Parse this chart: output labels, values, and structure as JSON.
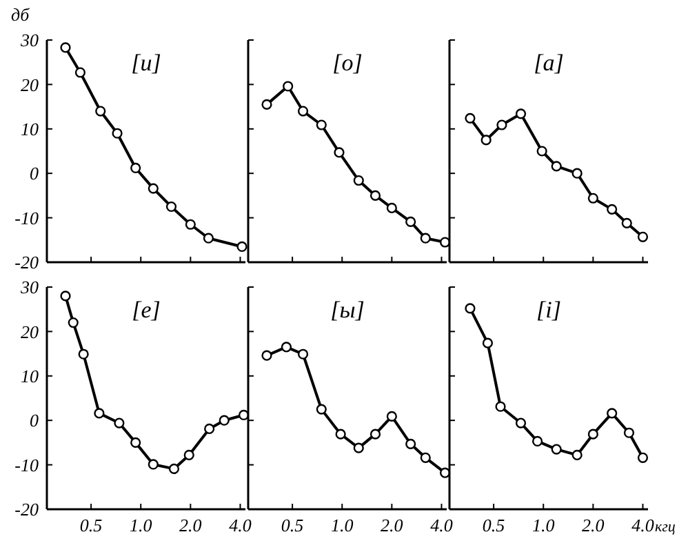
{
  "chart_data": [
    {
      "type": "line",
      "title": "[u]",
      "ylabel": "дб",
      "log": "x",
      "xlim": [
        0.27,
        4.3
      ],
      "xticks": [
        {
          "value": 0.5,
          "label": null
        },
        {
          "value": 1,
          "label": null
        },
        {
          "value": 2,
          "label": null
        },
        {
          "value": 4,
          "label": null
        }
      ],
      "ylim": [
        -20,
        30
      ],
      "yticks": [
        -20,
        -10,
        0,
        10,
        20,
        30
      ],
      "tick_labels": "y",
      "marker": "circle",
      "series": [
        {
          "color": "#000000",
          "x": [
            0.35,
            0.43,
            0.57,
            0.72,
            0.93,
            1.19,
            1.53,
            2.0,
            2.57,
            4.1
          ],
          "values": [
            28.3,
            22.7,
            14,
            9,
            1.2,
            -3.4,
            -7.5,
            -11.5,
            -14.6,
            -16.5
          ]
        }
      ]
    },
    {
      "type": "line",
      "title": "[o]",
      "log": "x",
      "xlim": [
        0.27,
        4.3
      ],
      "xticks": [
        {
          "value": 0.5,
          "label": null
        },
        {
          "value": 1,
          "label": null
        },
        {
          "value": 2,
          "label": null
        },
        {
          "value": 4,
          "label": null
        }
      ],
      "ylim": [
        -20,
        30
      ],
      "yticks": [
        -20,
        -10,
        0,
        10,
        20,
        30
      ],
      "tick_labels": false,
      "marker": "circle",
      "series": [
        {
          "color": "#000000",
          "x": [
            0.35,
            0.47,
            0.58,
            0.75,
            0.96,
            1.26,
            1.59,
            2.0,
            2.6,
            3.2,
            4.2
          ],
          "values": [
            15.5,
            19.6,
            14,
            10.9,
            4.7,
            -1.6,
            -5,
            -7.8,
            -10.9,
            -14.6,
            -15.5
          ]
        }
      ]
    },
    {
      "type": "line",
      "title": "[a]",
      "log": "x",
      "xlim": [
        0.27,
        4.3
      ],
      "xticks": [
        {
          "value": 0.5,
          "label": null
        },
        {
          "value": 1,
          "label": null
        },
        {
          "value": 2,
          "label": null
        },
        {
          "value": 4,
          "label": null
        }
      ],
      "ylim": [
        -20,
        30
      ],
      "yticks": [
        -20,
        -10,
        0,
        10,
        20,
        30
      ],
      "tick_labels": false,
      "marker": "circle",
      "series": [
        {
          "color": "#000000",
          "x": [
            0.36,
            0.45,
            0.56,
            0.73,
            0.98,
            1.2,
            1.6,
            2.0,
            2.6,
            3.2,
            4.0
          ],
          "values": [
            12.4,
            7.5,
            10.9,
            13.4,
            5,
            1.6,
            0,
            -5.6,
            -8.1,
            -11.2,
            -14.3
          ]
        }
      ]
    },
    {
      "type": "line",
      "title": "[e]",
      "log": "x",
      "xlim": [
        0.27,
        4.3
      ],
      "xticks": [
        {
          "value": 0.5,
          "label": "0.5"
        },
        {
          "value": 1,
          "label": "1.0"
        },
        {
          "value": 2,
          "label": "2.0"
        },
        {
          "value": 4,
          "label": "4.0"
        }
      ],
      "ylim": [
        -20,
        30
      ],
      "yticks": [
        -20,
        -10,
        0,
        10,
        20,
        30
      ],
      "marker": "circle",
      "series": [
        {
          "color": "#000000",
          "x": [
            0.35,
            0.39,
            0.45,
            0.56,
            0.74,
            0.93,
            1.19,
            1.59,
            1.96,
            2.6,
            3.2,
            4.2
          ],
          "values": [
            28,
            22,
            14.9,
            1.6,
            -0.6,
            -5,
            -9.9,
            -10.9,
            -7.8,
            -1.9,
            0,
            1.2
          ]
        }
      ]
    },
    {
      "type": "line",
      "title": "[ы]",
      "log": "x",
      "xlim": [
        0.27,
        4.3
      ],
      "xticks": [
        {
          "value": 0.5,
          "label": "0.5"
        },
        {
          "value": 1,
          "label": "1.0"
        },
        {
          "value": 2,
          "label": "2.0"
        },
        {
          "value": 4,
          "label": "4.0"
        }
      ],
      "ylim": [
        -20,
        30
      ],
      "yticks": [
        -20,
        -10,
        0,
        10,
        20,
        30
      ],
      "tick_labels": "x",
      "marker": "circle",
      "series": [
        {
          "color": "#000000",
          "x": [
            0.35,
            0.46,
            0.58,
            0.75,
            0.98,
            1.26,
            1.59,
            2.0,
            2.6,
            3.2,
            4.2
          ],
          "values": [
            14.6,
            16.5,
            14.9,
            2.5,
            -3.1,
            -6.2,
            -3.1,
            0.9,
            -5.3,
            -8.4,
            -11.8
          ]
        }
      ]
    },
    {
      "type": "line",
      "title": "[i]",
      "xlabel": "кгц",
      "log": "x",
      "xlim": [
        0.27,
        4.3
      ],
      "xticks": [
        {
          "value": 0.5,
          "label": "0.5"
        },
        {
          "value": 1,
          "label": "1.0"
        },
        {
          "value": 2,
          "label": "2.0"
        },
        {
          "value": 4,
          "label": "4.0"
        }
      ],
      "ylim": [
        -20,
        30
      ],
      "yticks": [
        -20,
        -10,
        0,
        10,
        20,
        30
      ],
      "tick_labels": "x",
      "marker": "circle",
      "series": [
        {
          "color": "#000000",
          "x": [
            0.36,
            0.46,
            0.55,
            0.73,
            0.92,
            1.2,
            1.6,
            2.0,
            2.6,
            3.3,
            4.0
          ],
          "values": [
            25.2,
            17.4,
            3.1,
            -0.6,
            -4.7,
            -6.5,
            -7.8,
            -3.1,
            1.6,
            -2.8,
            -8.4
          ]
        }
      ]
    }
  ]
}
